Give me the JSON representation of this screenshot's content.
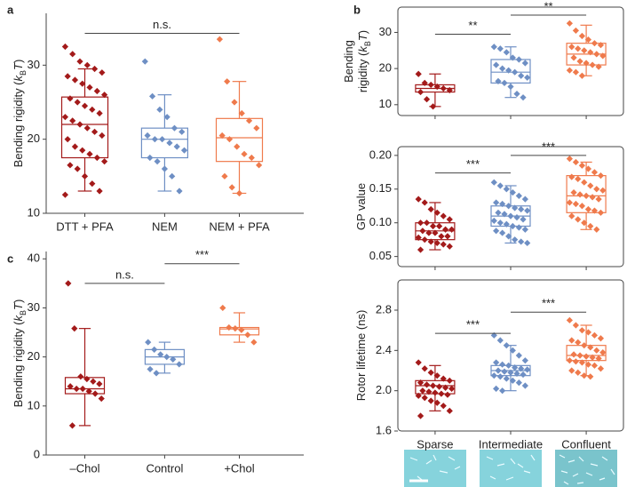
{
  "chart_data": [
    {
      "type": "box",
      "panel": "a",
      "ylabel_lines": [
        [
          "Bending rigidity (",
          "k",
          "B",
          "T",
          ")"
        ]
      ],
      "categories": [
        "DTT + PFA",
        "NEM",
        "NEM + PFA"
      ],
      "colors": [
        "#a31a1a",
        "#6e8fc4",
        "#ef7a4c"
      ],
      "ylim": [
        10,
        37
      ],
      "yticks": [
        10,
        20,
        30
      ],
      "boxes": [
        {
          "min": 13,
          "q1": 17.5,
          "median": 22,
          "q3": 25.7,
          "max": 29.5
        },
        {
          "min": 13,
          "q1": 17.5,
          "median": 20,
          "q3": 21.5,
          "max": 26
        },
        {
          "min": 12.7,
          "q1": 17,
          "median": 20.2,
          "q3": 22.8,
          "max": 27.8
        }
      ],
      "points": [
        [
          32.5,
          31.5,
          30.5,
          30,
          29.5,
          29,
          28.5,
          28,
          27.5,
          27,
          26.5,
          26,
          25.5,
          25,
          24.5,
          24,
          23.5,
          23,
          22.5,
          22,
          21.5,
          21,
          20.5,
          20,
          19,
          18.5,
          18,
          17.5,
          17,
          16.5,
          16,
          15,
          14,
          13,
          12.5
        ],
        [
          30.5,
          25.8,
          24,
          23,
          21.5,
          21,
          20.5,
          20,
          20,
          19.5,
          19,
          18.5,
          17.5,
          17,
          16,
          15,
          13
        ],
        [
          33.5,
          27.8,
          25,
          23.5,
          22.5,
          21.5,
          20.5,
          20,
          19,
          18,
          17.5,
          16.5,
          15,
          13.5,
          12.7
        ]
      ],
      "significance": [
        {
          "label": "n.s.",
          "from": 0,
          "to": 2,
          "y": 34.3
        }
      ]
    },
    {
      "type": "box",
      "panel": "b",
      "ylabel_lines": [
        [
          "Bending"
        ],
        [
          "rigidity (",
          "k",
          "B",
          "T",
          ")"
        ]
      ],
      "categories": [
        null,
        null,
        null
      ],
      "colors": [
        "#a31a1a",
        "#6e8fc4",
        "#ef7a4c"
      ],
      "ylim": [
        7,
        37
      ],
      "yticks": [
        10,
        20,
        30
      ],
      "boxes": [
        {
          "min": 9.5,
          "q1": 13.5,
          "median": 14.5,
          "q3": 15.5,
          "max": 18.5
        },
        {
          "min": 12,
          "q1": 16,
          "median": 19,
          "q3": 22.5,
          "max": 26
        },
        {
          "min": 18,
          "q1": 21,
          "median": 24,
          "q3": 27,
          "max": 32
        }
      ],
      "points": [
        [
          18.5,
          16,
          15.5,
          15,
          14.5,
          14,
          13.5,
          11.5,
          9.5
        ],
        [
          26,
          25.5,
          24.5,
          23,
          22.5,
          21.5,
          21,
          20,
          19.5,
          19,
          18,
          17.5,
          16.5,
          16,
          15,
          13,
          12
        ],
        [
          32.5,
          30.5,
          29,
          28,
          27,
          26.5,
          26,
          25.5,
          25,
          24.5,
          24,
          23.5,
          23,
          22,
          21.5,
          21,
          20.5,
          19.5,
          19,
          18
        ]
      ],
      "significance": [
        {
          "label": "**",
          "from": 0,
          "to": 1,
          "y": 29.5
        },
        {
          "label": "**",
          "from": 1,
          "to": 2,
          "y": 34.8
        }
      ]
    },
    {
      "type": "box",
      "ylabel_lines": [
        [
          "GP value"
        ]
      ],
      "categories": [
        null,
        null,
        null
      ],
      "colors": [
        "#a31a1a",
        "#6e8fc4",
        "#ef7a4c"
      ],
      "ylim": [
        0.035,
        0.213
      ],
      "yticks": [
        0.05,
        {
          "value": 0.1,
          "label": "0.10"
        },
        0.15,
        {
          "value": 0.2,
          "label": "0.20"
        }
      ],
      "boxes": [
        {
          "min": 0.06,
          "q1": 0.075,
          "median": 0.088,
          "q3": 0.1,
          "max": 0.13
        },
        {
          "min": 0.07,
          "q1": 0.095,
          "median": 0.11,
          "q3": 0.125,
          "max": 0.155
        },
        {
          "min": 0.09,
          "q1": 0.115,
          "median": 0.14,
          "q3": 0.17,
          "max": 0.19
        }
      ],
      "points": [
        [
          0.135,
          0.13,
          0.12,
          0.115,
          0.11,
          0.105,
          0.1,
          0.1,
          0.095,
          0.095,
          0.09,
          0.09,
          0.088,
          0.085,
          0.085,
          0.08,
          0.08,
          0.078,
          0.075,
          0.072,
          0.07,
          0.068,
          0.065,
          0.06
        ],
        [
          0.16,
          0.155,
          0.15,
          0.145,
          0.14,
          0.135,
          0.13,
          0.128,
          0.125,
          0.122,
          0.12,
          0.118,
          0.115,
          0.113,
          0.11,
          0.108,
          0.105,
          0.103,
          0.1,
          0.098,
          0.095,
          0.093,
          0.09,
          0.088,
          0.085,
          0.08,
          0.075,
          0.072,
          0.07
        ],
        [
          0.195,
          0.19,
          0.185,
          0.18,
          0.175,
          0.17,
          0.168,
          0.165,
          0.16,
          0.155,
          0.15,
          0.148,
          0.145,
          0.142,
          0.14,
          0.138,
          0.135,
          0.13,
          0.128,
          0.125,
          0.12,
          0.118,
          0.115,
          0.11,
          0.105,
          0.1,
          0.095,
          0.09
        ]
      ],
      "significance": [
        {
          "label": "***",
          "from": 0,
          "to": 1,
          "y": 0.174
        },
        {
          "label": "***",
          "from": 1,
          "to": 2,
          "y": 0.2
        }
      ]
    },
    {
      "type": "box",
      "ylabel_lines": [
        [
          "Rotor lifetime (ns)"
        ]
      ],
      "categories": [
        "Sparse",
        "Intermediate",
        "Confluent"
      ],
      "colors": [
        "#a31a1a",
        "#6e8fc4",
        "#ef7a4c"
      ],
      "ylim": [
        1.6,
        3.1
      ],
      "yticks": [
        1.6,
        {
          "value": 2,
          "label": "2.0"
        },
        2.4,
        2.8
      ],
      "boxes": [
        {
          "min": 1.8,
          "q1": 1.97,
          "median": 2.05,
          "q3": 2.1,
          "max": 2.25
        },
        {
          "min": 2.0,
          "q1": 2.15,
          "median": 2.2,
          "q3": 2.25,
          "max": 2.45
        },
        {
          "min": 2.15,
          "q1": 2.3,
          "median": 2.35,
          "q3": 2.45,
          "max": 2.65
        }
      ],
      "points": [
        [
          2.28,
          2.22,
          2.18,
          2.15,
          2.12,
          2.1,
          2.08,
          2.06,
          2.05,
          2.04,
          2.03,
          2.02,
          2.0,
          1.99,
          1.98,
          1.97,
          1.96,
          1.95,
          1.93,
          1.9,
          1.88,
          1.85,
          1.8,
          1.75
        ],
        [
          2.55,
          2.5,
          2.45,
          2.4,
          2.35,
          2.3,
          2.28,
          2.26,
          2.25,
          2.23,
          2.22,
          2.21,
          2.2,
          2.19,
          2.18,
          2.17,
          2.16,
          2.15,
          2.14,
          2.12,
          2.1,
          2.08,
          2.05,
          2.02,
          2.0
        ],
        [
          2.7,
          2.65,
          2.6,
          2.58,
          2.55,
          2.52,
          2.5,
          2.48,
          2.45,
          2.43,
          2.4,
          2.38,
          2.36,
          2.35,
          2.34,
          2.33,
          2.32,
          2.3,
          2.29,
          2.28,
          2.26,
          2.25,
          2.22,
          2.2,
          2.18,
          2.15,
          2.14
        ]
      ],
      "significance": [
        {
          "label": "***",
          "from": 0,
          "to": 1,
          "y": 2.57
        },
        {
          "label": "***",
          "from": 1,
          "to": 2,
          "y": 2.78
        }
      ]
    },
    {
      "type": "box",
      "panel": "c",
      "ylabel_lines": [
        [
          "Bending rigidity (",
          "k",
          "B",
          "T",
          ")"
        ]
      ],
      "categories": [
        "–Chol",
        "Control",
        "+Chol"
      ],
      "colors": [
        "#a31a1a",
        "#6e8fc4",
        "#ef7a4c"
      ],
      "ylim": [
        0,
        41.5
      ],
      "yticks": [
        0,
        10,
        20,
        30,
        40
      ],
      "boxes": [
        {
          "min": 6,
          "q1": 12.5,
          "median": 13.5,
          "q3": 15.8,
          "max": 25.8
        },
        {
          "min": 16.7,
          "q1": 18.5,
          "median": 20,
          "q3": 21.5,
          "max": 23
        },
        {
          "min": 23,
          "q1": 24.5,
          "median": 25.7,
          "q3": 26,
          "max": 29
        }
      ],
      "points": [
        [
          35,
          25.8,
          16,
          15.5,
          15,
          14.5,
          14,
          13.5,
          13.5,
          13,
          12.5,
          11.5,
          6
        ],
        [
          23,
          21.5,
          20.5,
          20,
          19.5,
          18.5,
          17.5,
          16.7
        ],
        [
          30,
          26,
          25.8,
          25.5,
          24.5,
          23
        ]
      ],
      "significance": [
        {
          "label": "n.s.",
          "from": 0,
          "to": 1,
          "y": 35
        },
        {
          "label": "***",
          "from": 1,
          "to": 2,
          "y": 39
        }
      ]
    }
  ]
}
